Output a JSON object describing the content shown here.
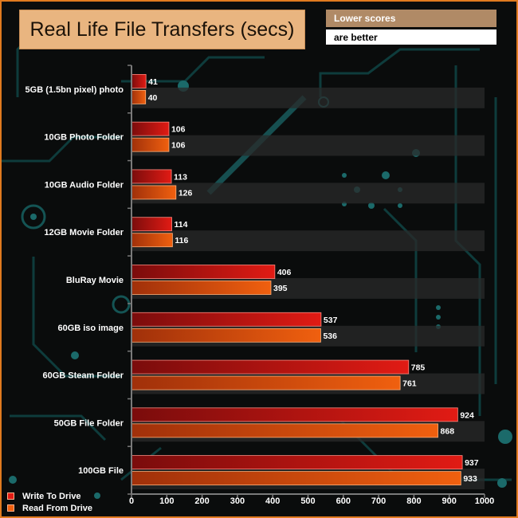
{
  "title": "Real Life File Transfers (secs)",
  "note": {
    "line1": "Lower scores",
    "line2": "are better"
  },
  "colors": {
    "write": "#e11b14",
    "read": "#f0600f",
    "frame": "#e07a1f",
    "title_bg": "#e9b580"
  },
  "chart_data": {
    "type": "bar",
    "orientation": "horizontal",
    "categories": [
      "5GB (1.5bn pixel) photo",
      "10GB Photo Folder",
      "10GB Audio Folder",
      "12GB Movie Folder",
      "BluRay Movie",
      "60GB iso image",
      "60GB Steam Folder",
      "50GB File Folder",
      "100GB File"
    ],
    "series": [
      {
        "name": "Write To  Drive",
        "values": [
          41,
          106,
          113,
          114,
          406,
          537,
          785,
          924,
          937
        ]
      },
      {
        "name": "Read From  Drive",
        "values": [
          40,
          106,
          126,
          116,
          395,
          536,
          761,
          868,
          933
        ]
      }
    ],
    "xlim": [
      0,
      1000
    ],
    "xticks": [
      "0",
      "100",
      "200",
      "300",
      "400",
      "500",
      "600",
      "700",
      "800",
      "900",
      "1000"
    ],
    "grid": false,
    "legend": "bottom-left"
  }
}
